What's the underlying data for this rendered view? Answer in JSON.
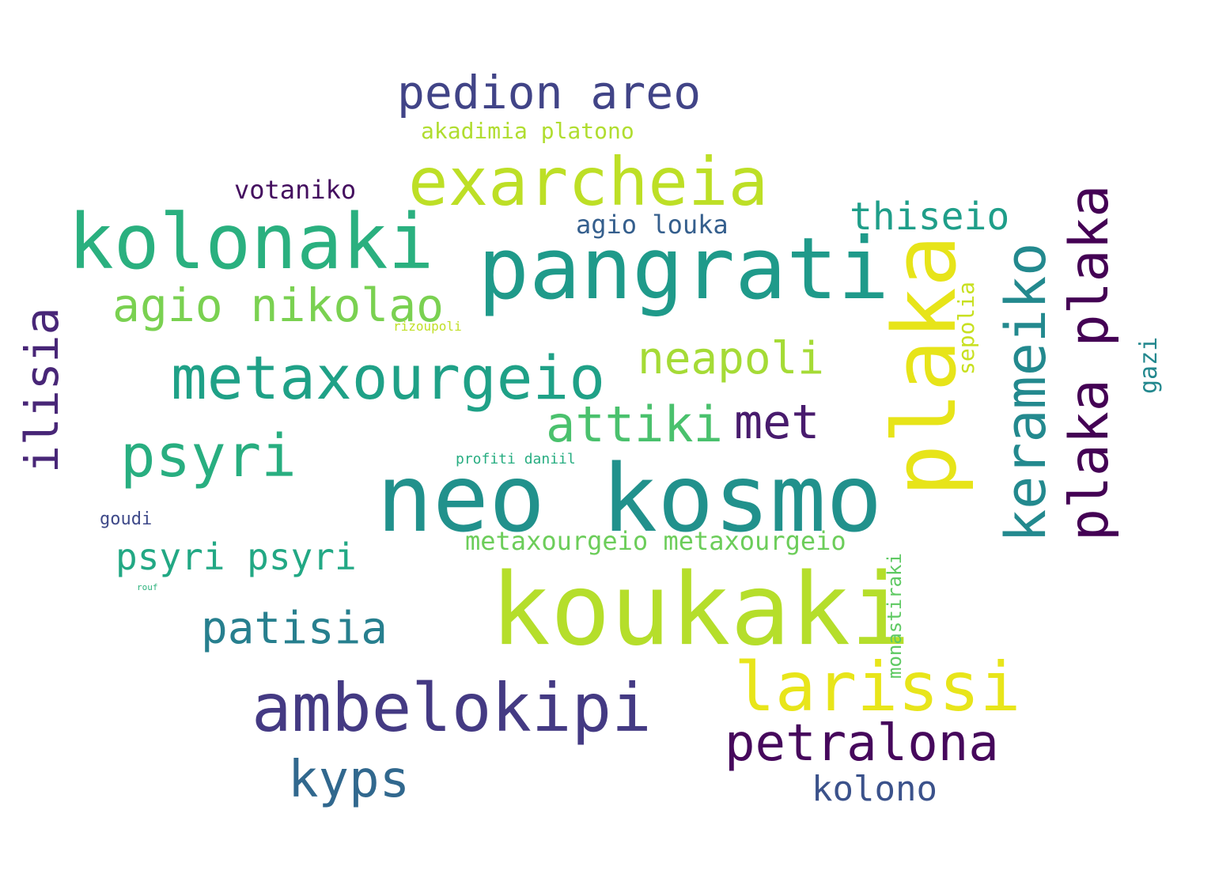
{
  "words": [
    {
      "key": "neo_kosmo",
      "text": "neo kosmo",
      "color": "#21918c"
    },
    {
      "key": "koukaki",
      "text": "koukaki",
      "color": "#b5de2b"
    },
    {
      "key": "pangrati",
      "text": "pangrati",
      "color": "#1f9a8a"
    },
    {
      "key": "kolonaki",
      "text": "kolonaki",
      "color": "#2ab07f"
    },
    {
      "key": "exarcheia",
      "text": "exarcheia",
      "color": "#bddf26"
    },
    {
      "key": "plaka",
      "text": "plaka",
      "color": "#e7e419",
      "vertical": true
    },
    {
      "key": "metaxourgeio",
      "text": "metaxourgeio",
      "color": "#1fa187"
    },
    {
      "key": "ambelokipi",
      "text": "ambelokipi",
      "color": "#443a83"
    },
    {
      "key": "larissi",
      "text": "larissi",
      "color": "#e8e51a"
    },
    {
      "key": "psyri",
      "text": "psyri",
      "color": "#28ae80"
    },
    {
      "key": "kerameiko",
      "text": "kerameiko",
      "color": "#23898e",
      "vertical": true
    },
    {
      "key": "plaka_plaka",
      "text": "plaka plaka",
      "color": "#440154",
      "vertical": true
    },
    {
      "key": "petralona",
      "text": "petralona",
      "color": "#46085c"
    },
    {
      "key": "agio_nikolao",
      "text": "agio nikolao",
      "color": "#7ad151"
    },
    {
      "key": "attiki",
      "text": "attiki",
      "color": "#4ac16d"
    },
    {
      "key": "neapoli",
      "text": "neapoli",
      "color": "#a5db36"
    },
    {
      "key": "met",
      "text": "met",
      "color": "#481b6d"
    },
    {
      "key": "pedion_areo",
      "text": "pedion areo",
      "color": "#414487"
    },
    {
      "key": "patisia",
      "text": "patisia",
      "color": "#277f8e"
    },
    {
      "key": "kyps",
      "text": "kyps",
      "color": "#31688e"
    },
    {
      "key": "ilisia",
      "text": "ilisia",
      "color": "#482677",
      "vertical": true
    },
    {
      "key": "kolono",
      "text": "kolono",
      "color": "#3b528b"
    },
    {
      "key": "psyri_psyri",
      "text": "psyri psyri",
      "color": "#22a884"
    },
    {
      "key": "thiseio",
      "text": "thiseio",
      "color": "#1f9e89"
    },
    {
      "key": "metaxourgeio_metaxourgeio",
      "text": "metaxourgeio metaxourgeio",
      "color": "#6ccd5a"
    },
    {
      "key": "votaniko",
      "text": "votaniko",
      "color": "#440f5f"
    },
    {
      "key": "agio_louka",
      "text": "agio louka",
      "color": "#355f8d"
    },
    {
      "key": "akadimia_platono",
      "text": "akadimia platono",
      "color": "#b0dd2f"
    },
    {
      "key": "sepolia",
      "text": "sepolia",
      "color": "#c8e020",
      "vertical": true
    },
    {
      "key": "gazi",
      "text": "gazi",
      "color": "#23888e",
      "vertical": true
    },
    {
      "key": "monastiraki",
      "text": "monastiraki",
      "color": "#5ec962",
      "vertical": true
    },
    {
      "key": "goudi",
      "text": "goudi",
      "color": "#3e4989"
    },
    {
      "key": "profiti_daniil",
      "text": "profiti daniil",
      "color": "#27ad81"
    },
    {
      "key": "rizoupoli",
      "text": "rizoupoli",
      "color": "#c0df25"
    },
    {
      "key": "rouf",
      "text": "rouf",
      "color": "#2db27d"
    }
  ]
}
